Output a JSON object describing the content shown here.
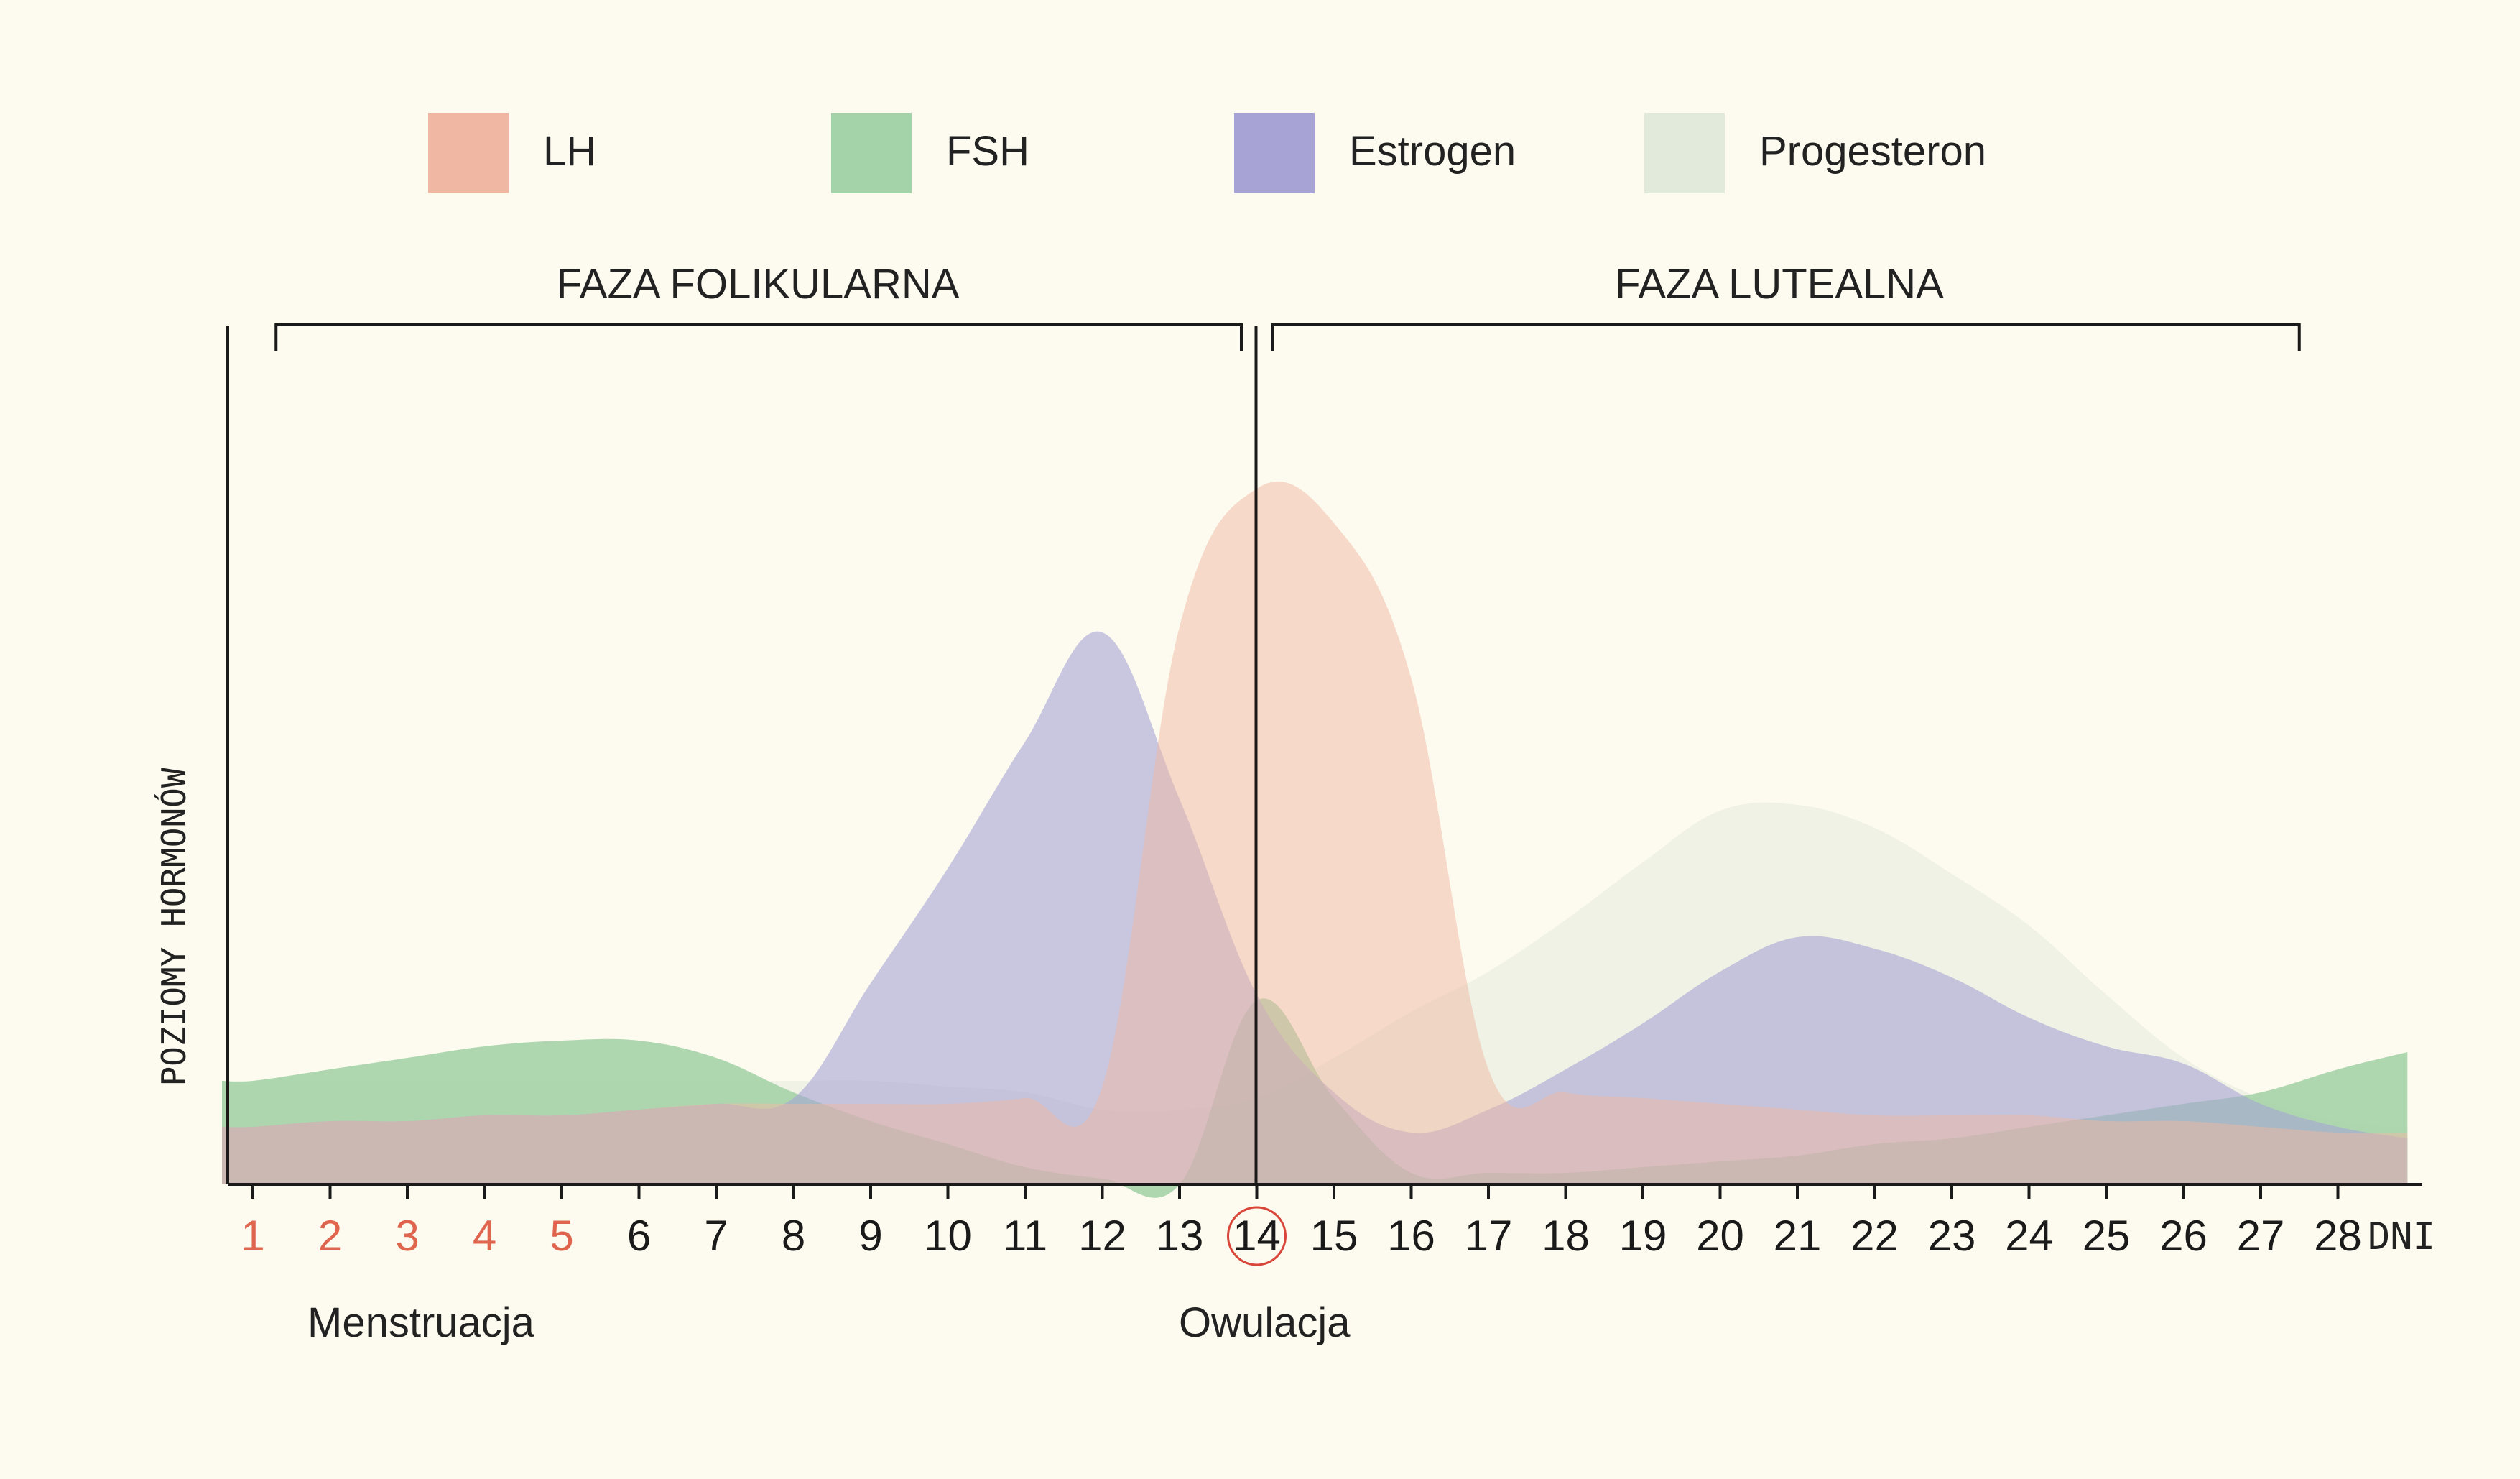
{
  "chart_data": {
    "type": "area",
    "ylabel": "POZIOMY HORMONÓW",
    "xunit": "DNI",
    "x": [
      0.6,
      1,
      2,
      3,
      4,
      5,
      6,
      7,
      8,
      9,
      10,
      11,
      12,
      13,
      14,
      15,
      16,
      17,
      18,
      19,
      20,
      21,
      22,
      23,
      24,
      25,
      26,
      27,
      28,
      28.9
    ],
    "ylim": [
      0,
      1
    ],
    "phases": [
      {
        "label": "FAZA FOLIKULARNA",
        "start_day": 1.3,
        "end_day": 13.8
      },
      {
        "label": "FAZA LUTEALNA",
        "start_day": 14.2,
        "end_day": 27.5
      }
    ],
    "menstruation_days": [
      1,
      2,
      3,
      4,
      5
    ],
    "ovulation_day": 14,
    "annotations": {
      "menstruation": "Menstruacja",
      "ovulation": "Owulacja"
    },
    "series": [
      {
        "name": "Progesteron",
        "color": "#e2eadb",
        "opacity": 0.5,
        "values": [
          0.18,
          0.18,
          0.18,
          0.18,
          0.18,
          0.18,
          0.18,
          0.18,
          0.18,
          0.18,
          0.17,
          0.16,
          0.13,
          0.13,
          0.15,
          0.22,
          0.3,
          0.37,
          0.46,
          0.56,
          0.65,
          0.66,
          0.62,
          0.54,
          0.45,
          0.33,
          0.22,
          0.15,
          0.11,
          0.1
        ]
      },
      {
        "name": "FSH",
        "color": "#a5d3a9",
        "opacity": 0.9,
        "values": [
          0.18,
          0.18,
          0.2,
          0.22,
          0.24,
          0.25,
          0.25,
          0.22,
          0.16,
          0.11,
          0.07,
          0.03,
          0.01,
          0.0,
          0.32,
          0.15,
          0.02,
          0.02,
          0.02,
          0.03,
          0.04,
          0.05,
          0.07,
          0.08,
          0.1,
          0.12,
          0.14,
          0.16,
          0.2,
          0.23
        ]
      },
      {
        "name": "Estrogen",
        "color": "#a7a3d4",
        "opacity": 0.6,
        "values": [
          0.1,
          0.1,
          0.11,
          0.11,
          0.12,
          0.12,
          0.13,
          0.14,
          0.15,
          0.35,
          0.55,
          0.77,
          0.96,
          0.67,
          0.33,
          0.16,
          0.09,
          0.13,
          0.2,
          0.28,
          0.37,
          0.43,
          0.41,
          0.36,
          0.29,
          0.24,
          0.21,
          0.14,
          0.1,
          0.08
        ]
      },
      {
        "name": "LH",
        "color": "#f0b8a2",
        "opacity": 0.5,
        "values": [
          0.1,
          0.1,
          0.11,
          0.11,
          0.12,
          0.12,
          0.13,
          0.14,
          0.14,
          0.14,
          0.14,
          0.15,
          0.17,
          0.97,
          1.21,
          1.15,
          0.88,
          0.2,
          0.16,
          0.15,
          0.14,
          0.13,
          0.12,
          0.12,
          0.12,
          0.11,
          0.11,
          0.1,
          0.09,
          0.09
        ]
      }
    ],
    "legend_order": [
      "LH",
      "FSH",
      "Estrogen",
      "Progesteron"
    ],
    "categories": [
      "1",
      "2",
      "3",
      "4",
      "5",
      "6",
      "7",
      "8",
      "9",
      "10",
      "11",
      "12",
      "13",
      "14",
      "15",
      "16",
      "17",
      "18",
      "19",
      "20",
      "21",
      "22",
      "23",
      "24",
      "25",
      "26",
      "27",
      "28"
    ],
    "legend": "top",
    "grid": false
  },
  "colors": {
    "background": "#fdfbef",
    "axis": "#1a1a1a",
    "menstruation_tick": "#e0654f",
    "ovulation_circle": "#d8463a",
    "tick": "#1a1a1a"
  }
}
